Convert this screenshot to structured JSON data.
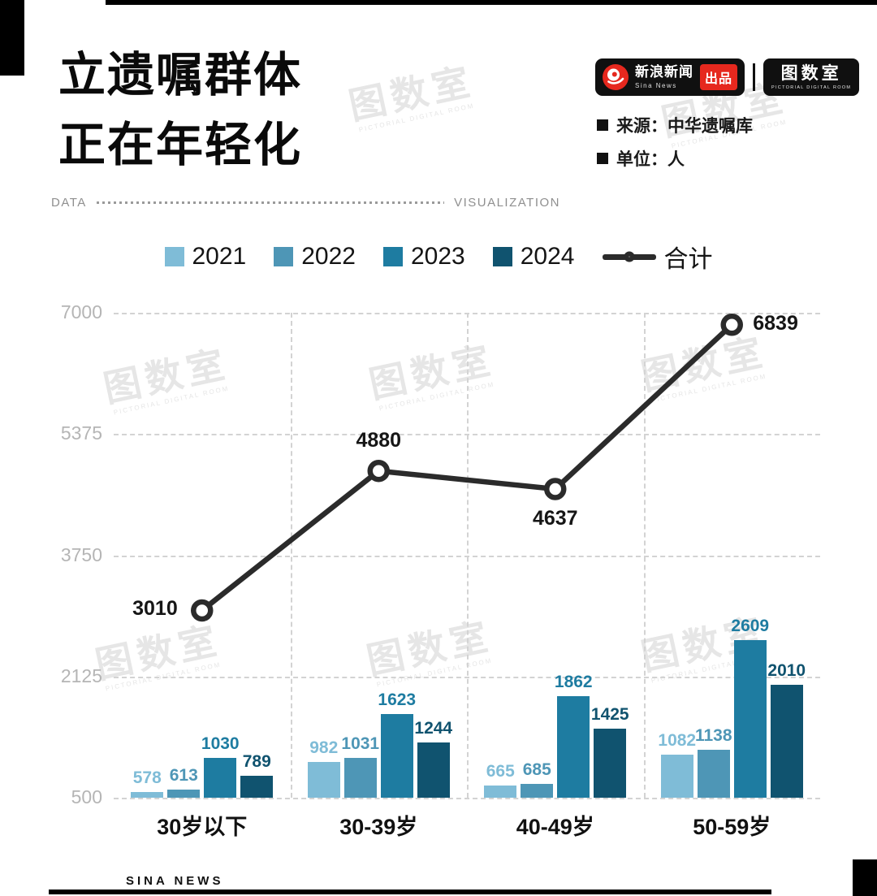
{
  "header": {
    "title_line1": "立遗嘱群体",
    "title_line2": "正在年轻化",
    "brand": {
      "sina_name": "新浪新闻",
      "sina_sub": "Sina News",
      "produce_label": "出品",
      "room_logo": "图数室",
      "room_sub": "PICTORIAL DIGITAL ROOM"
    },
    "source_label": "来源：中华遗嘱库",
    "unit_label": "单位：人"
  },
  "divider": {
    "left": "DATA",
    "right": "VISUALIZATION"
  },
  "watermark": {
    "text": "图数室",
    "sub": "PICTORIAL DIGITAL ROOM"
  },
  "footer": {
    "text": "SINA NEWS"
  },
  "chart_data": {
    "type": "bar",
    "title": "立遗嘱群体正在年轻化",
    "source": "中华遗嘱库",
    "unit": "人",
    "categories": [
      "30岁以下",
      "30-39岁",
      "40-49岁",
      "50-59岁"
    ],
    "series": [
      {
        "name": "2021",
        "color": "#7FBCD7",
        "values": [
          578,
          982,
          665,
          1082
        ]
      },
      {
        "name": "2022",
        "color": "#4E96B6",
        "values": [
          613,
          1031,
          685,
          1138
        ]
      },
      {
        "name": "2023",
        "color": "#1E7CA1",
        "values": [
          1030,
          1623,
          1862,
          2609
        ]
      },
      {
        "name": "2024",
        "color": "#10536F",
        "values": [
          789,
          1244,
          1425,
          2010
        ]
      }
    ],
    "line_series": {
      "name": "合计",
      "color": "#2b2b2b",
      "values": [
        3010,
        4880,
        4637,
        6839
      ]
    },
    "y_ticks": [
      7000,
      5375,
      3750,
      2125,
      500
    ],
    "ylim": [
      500,
      7000
    ],
    "grid": "dashed",
    "legend_position": "top",
    "xlabel": "",
    "ylabel": ""
  }
}
